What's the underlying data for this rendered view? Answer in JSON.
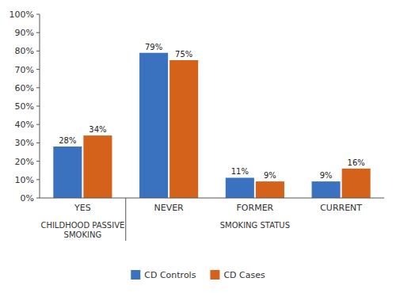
{
  "chart_data": {
    "type": "bar",
    "categories": [
      "YES",
      "NEVER",
      "FORMER",
      "CURRENT"
    ],
    "series": [
      {
        "name": "CD Controls",
        "color": "#3B72C0",
        "values": [
          28,
          79,
          11,
          9
        ],
        "value_labels": [
          "28%",
          "79%",
          "11%",
          "9%"
        ]
      },
      {
        "name": "CD Cases",
        "color": "#D4621B",
        "values": [
          34,
          75,
          9,
          16
        ],
        "value_labels": [
          "34%",
          "75%",
          "9%",
          "16%"
        ]
      }
    ],
    "ylim": [
      0,
      100
    ],
    "yticks": [
      {
        "value": 0,
        "label": "0%"
      },
      {
        "value": 10,
        "label": "10%"
      },
      {
        "value": 20,
        "label": "20%"
      },
      {
        "value": 30,
        "label": "30%"
      },
      {
        "value": 40,
        "label": "40%"
      },
      {
        "value": 50,
        "label": "50%"
      },
      {
        "value": 60,
        "label": "60%"
      },
      {
        "value": 70,
        "label": "70%"
      },
      {
        "value": 80,
        "label": "80%"
      },
      {
        "value": 90,
        "label": "90%"
      },
      {
        "value": 100,
        "label": "100%"
      }
    ],
    "annotations": [
      "CHILDHOOD PASSIVE\nSMOKING",
      "SMOKING STATUS"
    ],
    "data_labels": true,
    "grid": false,
    "legend": "bottom"
  }
}
